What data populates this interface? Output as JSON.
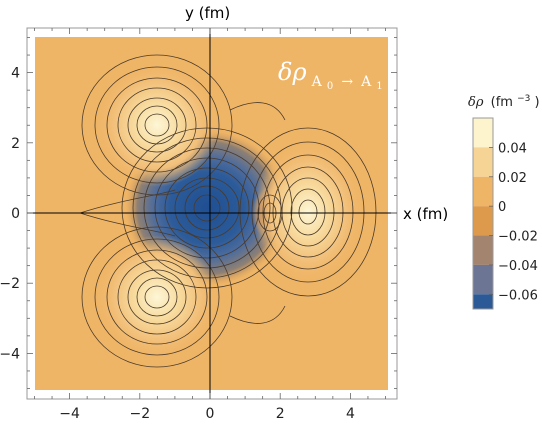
{
  "chart_data": {
    "type": "heatmap",
    "subtype": "contour density plot",
    "xlabel": "x (fm)",
    "ylabel": "y (fm)",
    "xlim": [
      -5,
      5
    ],
    "ylim": [
      -5,
      5
    ],
    "x_ticks": [
      "−4",
      "−2",
      "0",
      "2",
      "4"
    ],
    "y_ticks": [
      "−4",
      "−2",
      "0",
      "2",
      "4"
    ],
    "annotation": {
      "symbol": "δρ",
      "sub_from": "A",
      "sub_from_index": "0",
      "arrow": "→",
      "sub_to": "A",
      "sub_to_index": "1"
    },
    "colorbar": {
      "title_symbol": "δρ",
      "title_unit": "(fm",
      "title_exp": "−3",
      "title_close": ")",
      "range": [
        -0.07,
        0.06
      ],
      "tick_values": [
        0.04,
        0.02,
        0,
        -0.02,
        -0.04,
        -0.06
      ],
      "tick_labels": [
        "0.04",
        "0.02",
        "0",
        "−0.02",
        "−0.04",
        "−0.06"
      ],
      "bands": [
        {
          "from": 0.04,
          "to": 0.06,
          "color": "#fdf3cd"
        },
        {
          "from": 0.02,
          "to": 0.04,
          "color": "#f6d496"
        },
        {
          "from": 0.0,
          "to": 0.02,
          "color": "#efb567"
        },
        {
          "from": -0.02,
          "to": 0.0,
          "color": "#de9a4c"
        },
        {
          "from": -0.04,
          "to": -0.02,
          "color": "#a3846f"
        },
        {
          "from": -0.06,
          "to": -0.04,
          "color": "#6d7595"
        },
        {
          "from": -0.07,
          "to": -0.06,
          "color": "#2b5a96"
        }
      ]
    },
    "features": [
      {
        "kind": "depletion",
        "x": 0.0,
        "y": 0.0,
        "value": -0.068
      },
      {
        "kind": "enhancement",
        "x": -1.5,
        "y": 2.4,
        "value": 0.055
      },
      {
        "kind": "enhancement",
        "x": -1.5,
        "y": -2.4,
        "value": 0.055
      },
      {
        "kind": "enhancement",
        "x": 2.8,
        "y": 0.0,
        "value": 0.055
      },
      {
        "kind": "depletion",
        "x": 1.7,
        "y": 0.0,
        "value": -0.02
      }
    ]
  }
}
